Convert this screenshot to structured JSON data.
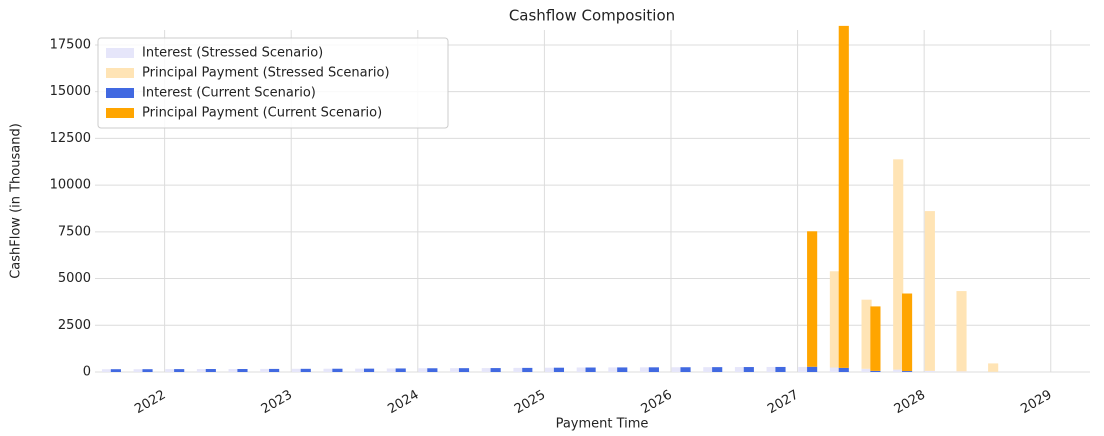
{
  "chart_data": {
    "type": "bar",
    "title": "Cashflow Composition",
    "x_label": "Payment Time",
    "y_label": "CashFlow (in Thousand)",
    "x": [
      2021.58,
      2021.83,
      2022.08,
      2022.33,
      2022.58,
      2022.83,
      2023.08,
      2023.33,
      2023.58,
      2023.83,
      2024.08,
      2024.33,
      2024.58,
      2024.83,
      2025.08,
      2025.33,
      2025.58,
      2025.83,
      2026.08,
      2026.33,
      2026.58,
      2026.83,
      2027.08,
      2027.33,
      2027.58,
      2027.83,
      2028.08,
      2028.33,
      2028.58
    ],
    "series": [
      {
        "name": "Interest (Stressed Scenario)",
        "color": "#e6e6fa",
        "values": [
          150,
          150,
          155,
          160,
          160,
          165,
          170,
          175,
          180,
          190,
          200,
          205,
          210,
          220,
          230,
          240,
          245,
          250,
          255,
          260,
          265,
          270,
          270,
          240,
          170,
          130,
          60,
          30,
          10
        ]
      },
      {
        "name": "Principal Payment (Stressed Scenario)",
        "color": "#ffe4b5",
        "values": [
          0,
          0,
          0,
          0,
          0,
          0,
          0,
          0,
          0,
          0,
          0,
          0,
          0,
          0,
          0,
          0,
          0,
          0,
          0,
          0,
          0,
          0,
          0,
          5150,
          3700,
          11250,
          8550,
          4300,
          450
        ]
      },
      {
        "name": "Interest (Current Scenario)",
        "color": "#4169e1",
        "values": [
          150,
          150,
          155,
          160,
          160,
          165,
          170,
          175,
          180,
          190,
          200,
          205,
          210,
          220,
          230,
          240,
          245,
          250,
          255,
          260,
          265,
          270,
          280,
          220,
          60,
          50,
          0,
          0,
          0
        ]
      },
      {
        "name": "Principal Payment (Current Scenario)",
        "color": "#ffa500",
        "values": [
          0,
          0,
          0,
          0,
          0,
          0,
          0,
          0,
          0,
          0,
          0,
          0,
          0,
          0,
          0,
          0,
          0,
          0,
          0,
          0,
          0,
          0,
          7250,
          18300,
          3450,
          4150,
          0,
          0,
          0
        ]
      }
    ],
    "xlim": [
      2021.45,
      2029.31
    ],
    "xticks": [
      2022,
      2023,
      2024,
      2025,
      2026,
      2027,
      2028,
      2029
    ],
    "ylim": [
      0,
      18300
    ],
    "yticks": [
      0,
      2500,
      5000,
      7500,
      10000,
      12500,
      15000,
      17500
    ],
    "grid": true,
    "legend": "upper left"
  }
}
